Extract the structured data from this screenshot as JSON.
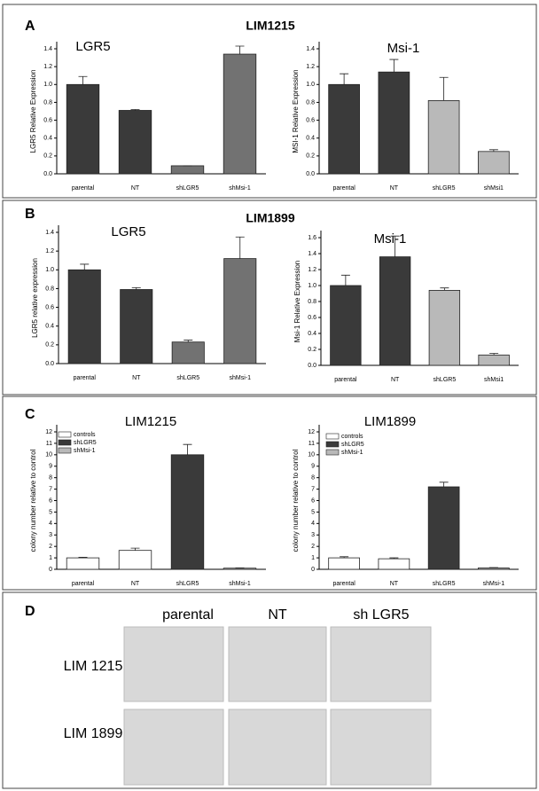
{
  "panels": [
    {
      "label": "A",
      "title": "LIM1215"
    },
    {
      "label": "B",
      "title": "LIM1899"
    },
    {
      "label": "C"
    },
    {
      "label": "D"
    }
  ],
  "micrographs": {
    "columns": [
      "parental",
      "NT",
      "sh LGR5"
    ],
    "rows": [
      "LIM 1215",
      "LIM 1899"
    ]
  },
  "chart_data": [
    {
      "type": "bar",
      "title": "LGR5",
      "ylabel": "LGR5 Relative Expression",
      "categories": [
        "parental",
        "NT",
        "shLGR5",
        "shMsi-1"
      ],
      "values": [
        1.0,
        0.71,
        0.09,
        1.34
      ],
      "errors": [
        0.09,
        0.01,
        0,
        0.09
      ],
      "colors": [
        "#3a3a3a",
        "#3a3a3a",
        "#727272",
        "#727272"
      ],
      "ylim": [
        0,
        1.4
      ],
      "yticks": [
        {
          "value": 0,
          "label": "0.0"
        },
        {
          "value": 0.2,
          "label": "0.2"
        },
        {
          "value": 0.4,
          "label": "0.4"
        },
        {
          "value": 0.6,
          "label": "0.6"
        },
        {
          "value": 0.8,
          "label": "0.8"
        },
        {
          "value": 1.0,
          "label": "1.0"
        },
        {
          "value": 1.2,
          "label": "1.2"
        },
        {
          "value": 1.4,
          "label": "1.4"
        }
      ]
    },
    {
      "type": "bar",
      "title": "Msi-1",
      "ylabel": "MSI-1 Relative Expression",
      "categories": [
        "parental",
        "NT",
        "shLGR5",
        "shMsi1"
      ],
      "values": [
        1.0,
        1.14,
        0.82,
        0.25
      ],
      "errors": [
        0.12,
        0.14,
        0.26,
        0.02
      ],
      "colors": [
        "#3a3a3a",
        "#3a3a3a",
        "#b9b9b9",
        "#b9b9b9"
      ],
      "ylim": [
        0,
        1.4
      ],
      "yticks": [
        {
          "value": 0,
          "label": "0.0"
        },
        {
          "value": 0.2,
          "label": "0.2"
        },
        {
          "value": 0.4,
          "label": "0.4"
        },
        {
          "value": 0.6,
          "label": "0.6"
        },
        {
          "value": 0.8,
          "label": "0.8"
        },
        {
          "value": 1.0,
          "label": "1.0"
        },
        {
          "value": 1.2,
          "label": "1.2"
        },
        {
          "value": 1.4,
          "label": "1.4"
        }
      ]
    },
    {
      "type": "bar",
      "title": "LGR5",
      "ylabel": "LGR5 relative expression",
      "categories": [
        "parental",
        "NT",
        "shLGR5",
        "shMsi-1"
      ],
      "values": [
        1.0,
        0.79,
        0.23,
        1.12
      ],
      "errors": [
        0.06,
        0.02,
        0.02,
        0.23
      ],
      "colors": [
        "#3a3a3a",
        "#3a3a3a",
        "#727272",
        "#727272"
      ],
      "ylim": [
        0,
        1.4
      ],
      "yticks": [
        {
          "value": 0,
          "label": "0.0"
        },
        {
          "value": 0.2,
          "label": "0.2"
        },
        {
          "value": 0.4,
          "label": "0.4"
        },
        {
          "value": 0.6,
          "label": "0.6"
        },
        {
          "value": 0.8,
          "label": "0.8"
        },
        {
          "value": 1.0,
          "label": "1.0"
        },
        {
          "value": 1.2,
          "label": "1.2"
        },
        {
          "value": 1.4,
          "label": "1.4"
        }
      ]
    },
    {
      "type": "bar",
      "title": "Msi-1",
      "ylabel": "Msi-1 Relative Expression",
      "categories": [
        "parental",
        "NT",
        "shLGR5",
        "shMsi1"
      ],
      "values": [
        1.0,
        1.36,
        0.94,
        0.13
      ],
      "errors": [
        0.13,
        0.26,
        0.03,
        0.02
      ],
      "colors": [
        "#3a3a3a",
        "#3a3a3a",
        "#b9b9b9",
        "#b9b9b9"
      ],
      "ylim": [
        0,
        1.6
      ],
      "yticks": [
        {
          "value": 0,
          "label": "0.0"
        },
        {
          "value": 0.2,
          "label": "0.2"
        },
        {
          "value": 0.4,
          "label": "0.4"
        },
        {
          "value": 0.6,
          "label": "0.6"
        },
        {
          "value": 0.8,
          "label": "0.8"
        },
        {
          "value": 1.0,
          "label": "1.0"
        },
        {
          "value": 1.2,
          "label": "1.2"
        },
        {
          "value": 1.4,
          "label": "1.4"
        },
        {
          "value": 1.6,
          "label": "1.6"
        }
      ]
    },
    {
      "type": "bar",
      "title": "LIM1215",
      "ylabel": "colony number relative to control",
      "categories": [
        "parental",
        "NT",
        "shLGR5",
        "shMsi-1"
      ],
      "values": [
        1.0,
        1.65,
        10.0,
        0.1
      ],
      "errors": [
        0.05,
        0.2,
        0.9,
        0.02
      ],
      "colors": [
        "#ffffff",
        "#ffffff",
        "#3a3a3a",
        "#b9b9b9"
      ],
      "legend": [
        {
          "name": "controls",
          "color": "#ffffff"
        },
        {
          "name": "shLGR5",
          "color": "#3a3a3a"
        },
        {
          "name": "shMsi-1",
          "color": "#b9b9b9"
        }
      ],
      "ylim": [
        0,
        12
      ],
      "yticks": [
        0,
        1,
        2,
        3,
        4,
        5,
        6,
        7,
        8,
        9,
        10,
        11,
        12
      ]
    },
    {
      "type": "bar",
      "title": "LIM1899",
      "ylabel": "colony number relative to control",
      "categories": [
        "parental",
        "NT",
        "shLGR5",
        "shMsi-1"
      ],
      "values": [
        1.0,
        0.92,
        7.2,
        0.12
      ],
      "errors": [
        0.1,
        0.08,
        0.4,
        0.03
      ],
      "colors": [
        "#ffffff",
        "#ffffff",
        "#3a3a3a",
        "#b9b9b9"
      ],
      "legend": [
        {
          "name": "controls",
          "color": "#ffffff"
        },
        {
          "name": "shLGR5",
          "color": "#3a3a3a"
        },
        {
          "name": "shMsi-1",
          "color": "#b9b9b9"
        }
      ],
      "ylim": [
        0,
        12
      ],
      "yticks": [
        0,
        1,
        2,
        3,
        4,
        5,
        6,
        7,
        8,
        9,
        10,
        11,
        12
      ]
    }
  ]
}
